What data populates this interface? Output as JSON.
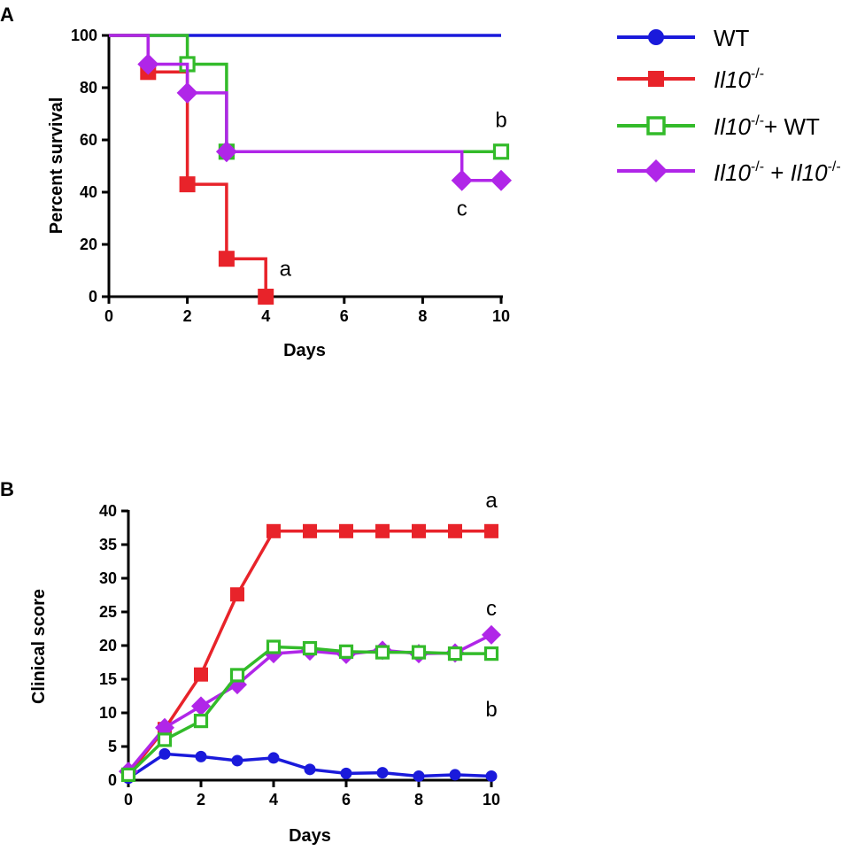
{
  "chart_data": [
    {
      "panel": "A",
      "type": "line",
      "subtype": "survival-step",
      "xlabel": "Days",
      "ylabel": "Percent survival",
      "xlim": [
        0,
        10
      ],
      "ylim": [
        0,
        100
      ],
      "xticks": [
        0,
        2,
        4,
        6,
        8,
        10
      ],
      "yticks": [
        0,
        20,
        40,
        60,
        80,
        100
      ],
      "series": [
        {
          "key": "wt",
          "name": "WT",
          "color": "#1a1adb",
          "marker": "circle",
          "steps": [
            [
              0,
              100
            ],
            [
              10,
              100
            ]
          ],
          "points": []
        },
        {
          "key": "il10",
          "name": "Il10-/-",
          "color": "#e8232a",
          "marker": "square",
          "steps": [
            [
              0,
              100
            ],
            [
              1,
              100
            ],
            [
              1,
              86
            ],
            [
              2,
              86
            ],
            [
              2,
              43
            ],
            [
              3,
              43
            ],
            [
              3,
              14.5
            ],
            [
              4,
              14.5
            ],
            [
              4,
              0
            ]
          ],
          "points": [
            [
              1,
              86
            ],
            [
              2,
              43
            ],
            [
              3,
              14.5
            ],
            [
              4,
              0
            ]
          ]
        },
        {
          "key": "il10wt",
          "name": "Il10-/-+ WT",
          "color": "#33bb2a",
          "marker": "open-square",
          "steps": [
            [
              0,
              100
            ],
            [
              2,
              100
            ],
            [
              2,
              89
            ],
            [
              3,
              89
            ],
            [
              3,
              55.5
            ],
            [
              10,
              55.5
            ]
          ],
          "points": [
            [
              2,
              89
            ],
            [
              3,
              55.5
            ],
            [
              10,
              55.5
            ]
          ]
        },
        {
          "key": "il10il10",
          "name": "Il10-/- + Il10-/-",
          "color": "#b026e8",
          "marker": "diamond",
          "steps": [
            [
              0,
              100
            ],
            [
              1,
              100
            ],
            [
              1,
              89
            ],
            [
              2,
              89
            ],
            [
              2,
              78
            ],
            [
              3,
              78
            ],
            [
              3,
              55.5
            ],
            [
              9,
              55.5
            ],
            [
              9,
              44.5
            ],
            [
              10,
              44.5
            ]
          ],
          "points": [
            [
              1,
              89
            ],
            [
              2,
              78
            ],
            [
              3,
              55.5
            ],
            [
              9,
              44.5
            ],
            [
              10,
              44.5
            ]
          ]
        }
      ],
      "annotations": [
        {
          "text": "a",
          "x": 4.5,
          "y": 8
        },
        {
          "text": "b",
          "x": 10,
          "y": 65
        },
        {
          "text": "c",
          "x": 9,
          "y": 31
        }
      ]
    },
    {
      "panel": "B",
      "type": "line",
      "xlabel": "Days",
      "ylabel": "Clinical score",
      "xlim": [
        0,
        10
      ],
      "ylim": [
        0,
        40
      ],
      "xticks": [
        0,
        2,
        4,
        6,
        8,
        10
      ],
      "yticks": [
        0,
        5,
        10,
        15,
        20,
        25,
        30,
        35,
        40
      ],
      "x": [
        0,
        1,
        2,
        3,
        4,
        5,
        6,
        7,
        8,
        9,
        10
      ],
      "series": [
        {
          "key": "wt",
          "name": "WT",
          "color": "#1a1adb",
          "marker": "circle",
          "values": [
            0.3,
            3.9,
            3.5,
            2.9,
            3.3,
            1.6,
            1.0,
            1.1,
            0.6,
            0.8,
            0.6
          ]
        },
        {
          "key": "il10",
          "name": "Il10-/-",
          "color": "#e8232a",
          "marker": "square",
          "values": [
            0.8,
            7.6,
            15.7,
            27.6,
            37.0,
            37.0,
            37.0,
            37.0,
            37.0,
            37.0,
            37.0
          ]
        },
        {
          "key": "il10wt",
          "name": "Il10-/-+ WT",
          "color": "#33bb2a",
          "marker": "open-square",
          "values": [
            0.8,
            6.0,
            8.8,
            15.6,
            19.8,
            19.6,
            19.1,
            19.0,
            19.0,
            18.8,
            18.8
          ]
        },
        {
          "key": "il10il10",
          "name": "Il10-/- + Il10-/-",
          "color": "#b026e8",
          "marker": "diamond",
          "values": [
            1.3,
            7.8,
            11.0,
            14.2,
            18.8,
            19.2,
            18.7,
            19.3,
            18.8,
            18.9,
            21.6
          ]
        }
      ],
      "annotations": [
        {
          "text": "a",
          "x": 10,
          "y": 40.5
        },
        {
          "text": "c",
          "x": 10,
          "y": 24.5
        },
        {
          "text": "b",
          "x": 10,
          "y": 9.5
        }
      ]
    }
  ],
  "panel_labels": {
    "a": "A",
    "b": "B"
  },
  "legend": {
    "wt": {
      "label": "WT"
    },
    "il10": {
      "base": "Il10",
      "sup": "-/-"
    },
    "il10wt": {
      "base": "Il10",
      "sup": "-/-",
      "rest": "+ WT"
    },
    "il10il10": {
      "base": "Il10",
      "sup": "-/-",
      "mid": " + ",
      "base2": "Il10",
      "sup2": "-/-"
    }
  }
}
